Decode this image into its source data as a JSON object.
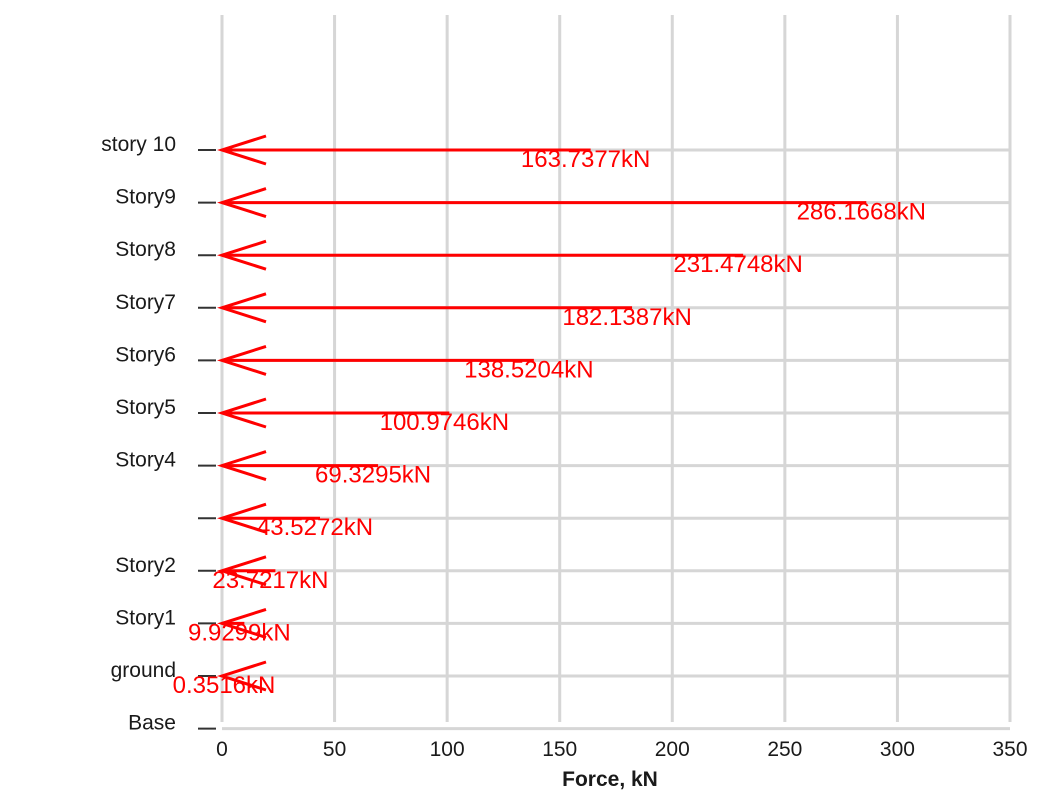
{
  "chart_data": {
    "type": "bar",
    "orientation": "horizontal",
    "title": "",
    "xlabel": "Force, kN",
    "ylabel": "",
    "xlim": [
      0,
      350
    ],
    "xticks": [
      "0",
      "50",
      "100",
      "150",
      "200",
      "250",
      "300",
      "350"
    ],
    "grid": true,
    "color": "#ff0000",
    "categories": [
      "story 10",
      "Story9",
      "Story8",
      "Story7",
      "Story6",
      "Story5",
      "Story4",
      "",
      "Story2",
      "Story1",
      "ground",
      "Base"
    ],
    "values": [
      163.7377,
      286.1668,
      231.4748,
      182.1387,
      138.5204,
      100.9746,
      69.3295,
      43.5272,
      23.7217,
      9.9299,
      0.3516,
      null
    ],
    "data_labels": [
      "163.7377kN",
      "286.1668kN",
      "231.4748kN",
      "182.1387kN",
      "138.5204kN",
      "100.9746kN",
      "69.3295kN",
      "43.5272kN",
      "23.7217kN",
      "9.9299kN",
      "0.3516kN",
      ""
    ]
  }
}
